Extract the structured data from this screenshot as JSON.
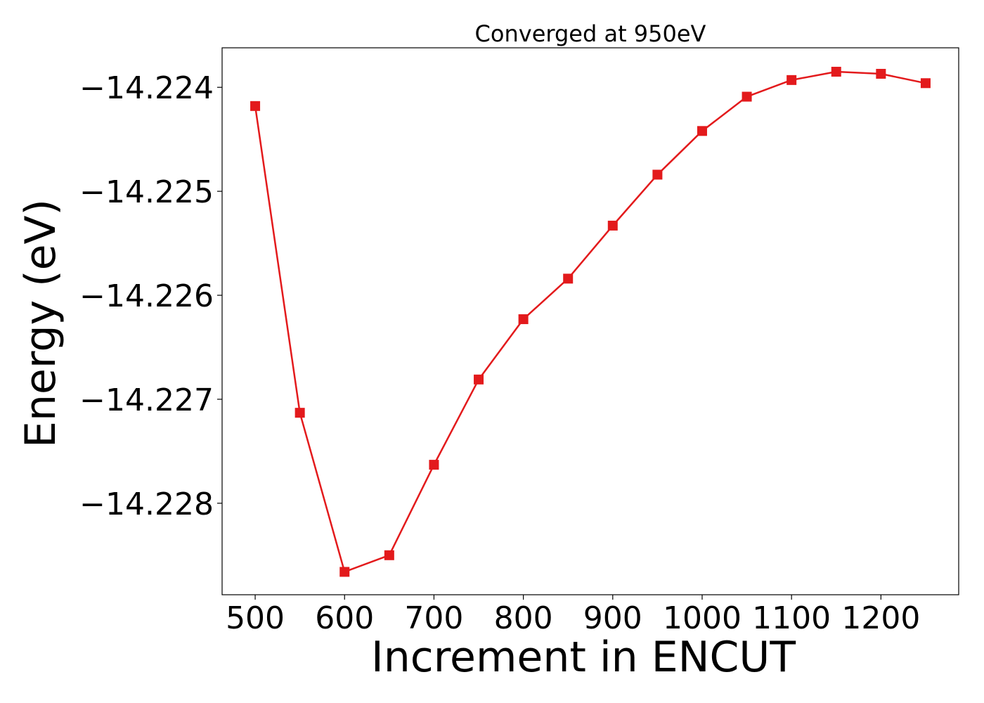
{
  "chart_data": {
    "type": "line",
    "title": "Converged at 950eV",
    "xlabel": "Increment in ENCUT",
    "ylabel": "Energy (eV)",
    "xlim": [
      463,
      1287
    ],
    "ylim": [
      -14.22888,
      -14.22362
    ],
    "x_ticks": [
      500,
      600,
      700,
      800,
      900,
      1000,
      1100,
      1200
    ],
    "x_tick_labels": [
      "500",
      "600",
      "700",
      "800",
      "900",
      "1000",
      "1100",
      "1200"
    ],
    "y_ticks": [
      -14.224,
      -14.225,
      -14.226,
      -14.227,
      -14.228
    ],
    "y_tick_labels": [
      "−14.224",
      "−14.225",
      "−14.226",
      "−14.227",
      "−14.228"
    ],
    "grid": false,
    "series": [
      {
        "color": "#e31a1c",
        "marker": "square",
        "x": [
          500,
          550,
          600,
          650,
          700,
          750,
          800,
          850,
          900,
          950,
          1000,
          1050,
          1100,
          1150,
          1200,
          1250
        ],
        "y": [
          -14.22418,
          -14.22713,
          -14.22866,
          -14.2285,
          -14.22763,
          -14.22681,
          -14.22623,
          -14.22584,
          -14.22533,
          -14.22484,
          -14.22442,
          -14.22409,
          -14.22393,
          -14.22385,
          -14.22387,
          -14.22396
        ]
      }
    ]
  }
}
